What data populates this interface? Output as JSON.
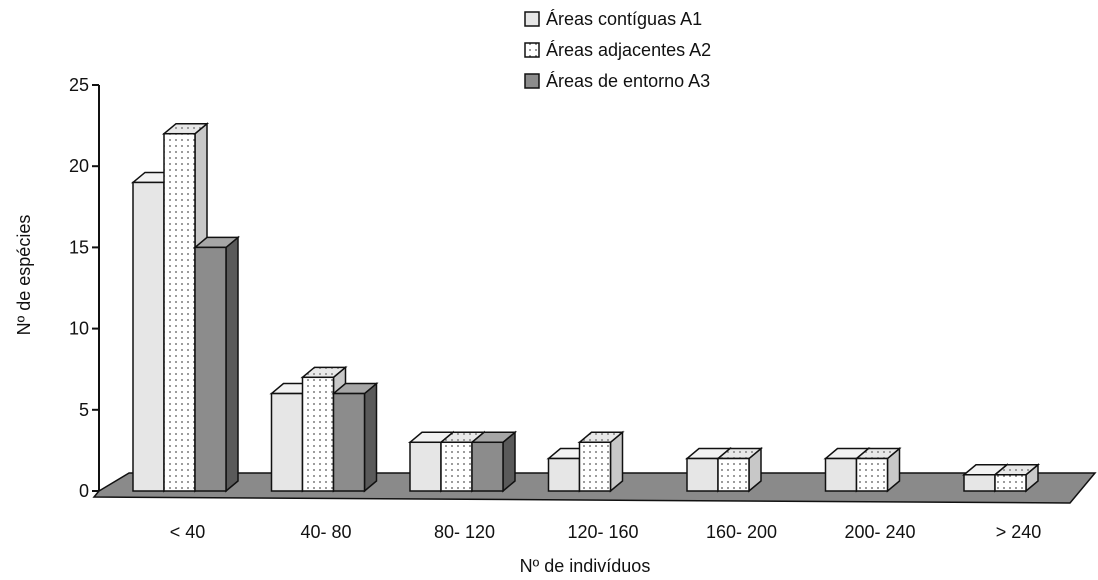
{
  "chart_data": {
    "type": "bar",
    "categories": [
      "< 40",
      "40- 80",
      "80- 120",
      "120- 160",
      "160- 200",
      "200- 240",
      "> 240"
    ],
    "series": [
      {
        "name": "Áreas contíguas A1",
        "values": [
          19,
          6,
          3,
          2,
          2,
          2,
          1
        ],
        "pattern": "light"
      },
      {
        "name": "Áreas adjacentes A2",
        "values": [
          22,
          7,
          3,
          3,
          2,
          2,
          1
        ],
        "pattern": "dots"
      },
      {
        "name": "Áreas de entorno A3",
        "values": [
          15,
          6,
          3,
          null,
          null,
          null,
          null
        ],
        "pattern": "dark"
      }
    ],
    "xlabel": "Nº de indivíduos",
    "ylabel": "Nº de espécies",
    "ylim": [
      0,
      25
    ],
    "yticks": [
      0,
      5,
      10,
      15,
      20,
      25
    ],
    "legend_position": "top-right",
    "style": "3d"
  }
}
